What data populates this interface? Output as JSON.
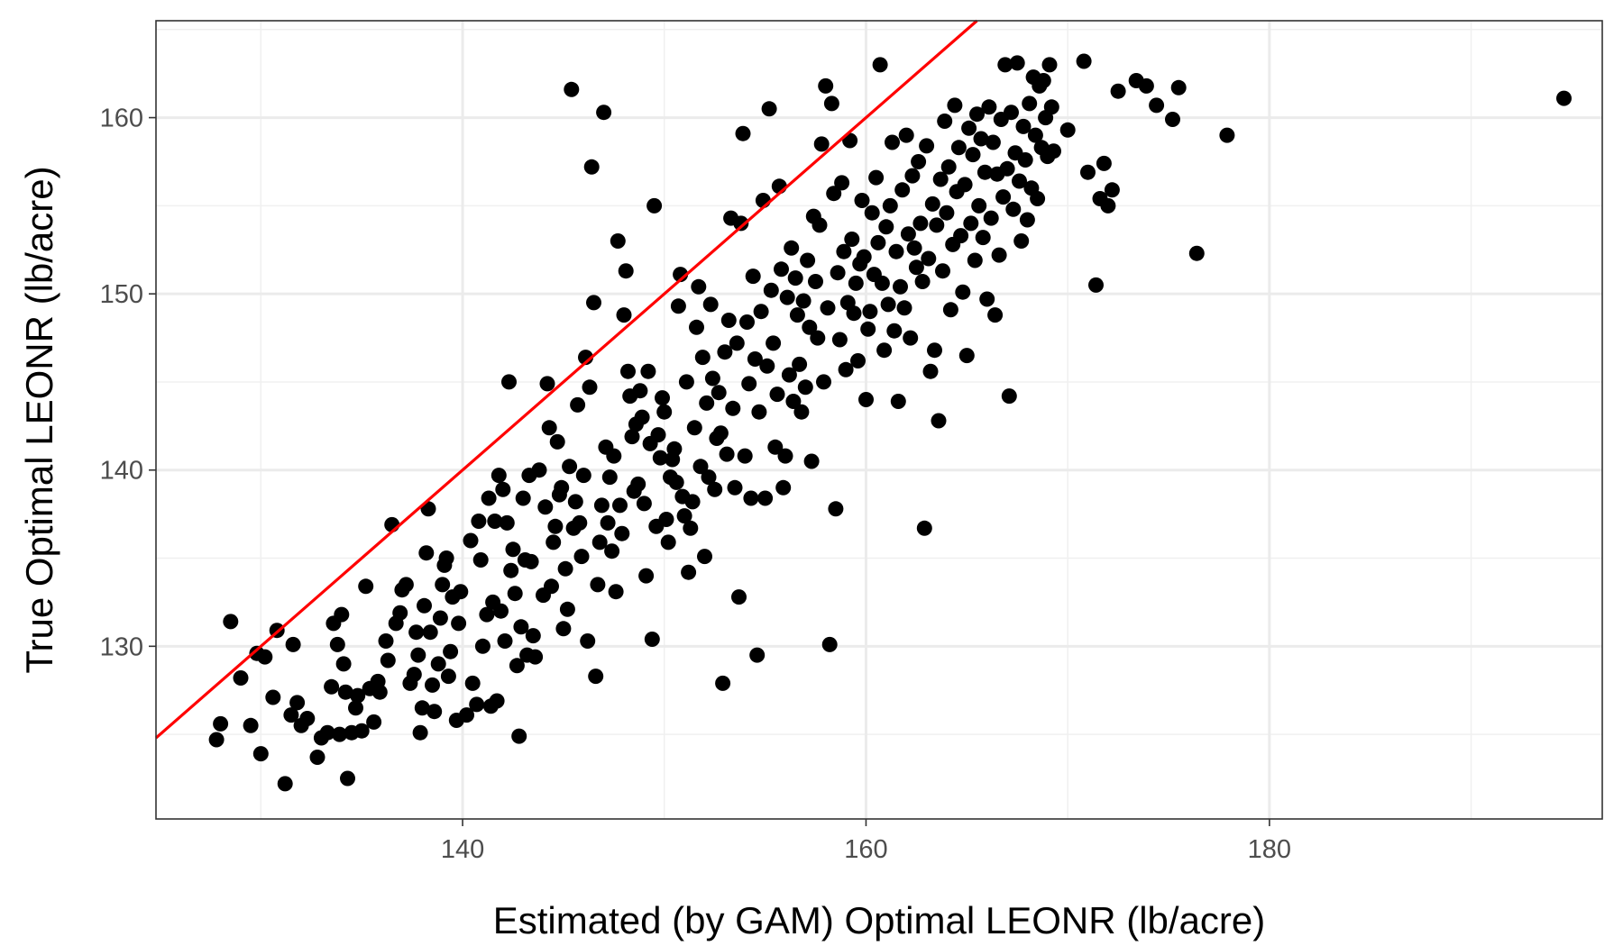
{
  "chart_data": {
    "type": "scatter",
    "xlabel": "Estimated (by GAM) Optimal LEONR (lb/acre)",
    "ylabel": "True Optimal LEONR (lb/acre)",
    "xlim": [
      124.8,
      196.5
    ],
    "ylim": [
      120.2,
      165.5
    ],
    "xticks": [
      140,
      160,
      180
    ],
    "yticks": [
      130,
      140,
      150,
      160
    ],
    "grid": true,
    "legend": "none",
    "point_color": "#000000",
    "reference_line": {
      "type": "identity",
      "slope": 1,
      "intercept": 0,
      "color": "#ff0000"
    },
    "points": [
      [
        127.8,
        124.7
      ],
      [
        128.0,
        125.6
      ],
      [
        128.5,
        131.4
      ],
      [
        129.0,
        128.2
      ],
      [
        129.5,
        125.5
      ],
      [
        129.8,
        129.6
      ],
      [
        130.0,
        123.9
      ],
      [
        130.2,
        129.4
      ],
      [
        130.6,
        127.1
      ],
      [
        130.8,
        130.9
      ],
      [
        131.2,
        122.2
      ],
      [
        131.5,
        126.1
      ],
      [
        131.8,
        126.8
      ],
      [
        131.6,
        130.1
      ],
      [
        132.0,
        125.5
      ],
      [
        132.3,
        125.9
      ],
      [
        132.8,
        123.7
      ],
      [
        133.0,
        124.8
      ],
      [
        133.3,
        125.1
      ],
      [
        133.5,
        127.7
      ],
      [
        133.6,
        131.3
      ],
      [
        133.8,
        130.1
      ],
      [
        133.9,
        125.0
      ],
      [
        134.0,
        131.8
      ],
      [
        134.1,
        129.0
      ],
      [
        134.2,
        127.4
      ],
      [
        134.3,
        122.5
      ],
      [
        134.5,
        125.1
      ],
      [
        134.7,
        126.5
      ],
      [
        134.8,
        127.2
      ],
      [
        135.0,
        125.2
      ],
      [
        135.2,
        133.4
      ],
      [
        135.4,
        127.6
      ],
      [
        135.6,
        125.7
      ],
      [
        135.8,
        128.0
      ],
      [
        135.9,
        127.4
      ],
      [
        136.2,
        130.3
      ],
      [
        136.3,
        129.2
      ],
      [
        136.5,
        136.9
      ],
      [
        136.7,
        131.3
      ],
      [
        136.9,
        131.9
      ],
      [
        137.0,
        133.2
      ],
      [
        137.2,
        133.5
      ],
      [
        137.4,
        127.9
      ],
      [
        137.6,
        128.4
      ],
      [
        137.7,
        130.8
      ],
      [
        137.8,
        129.5
      ],
      [
        137.9,
        125.1
      ],
      [
        138.0,
        126.5
      ],
      [
        138.1,
        132.3
      ],
      [
        138.2,
        135.3
      ],
      [
        138.3,
        137.8
      ],
      [
        138.4,
        130.8
      ],
      [
        138.5,
        127.8
      ],
      [
        138.6,
        126.3
      ],
      [
        138.8,
        129.0
      ],
      [
        138.9,
        131.6
      ],
      [
        139.0,
        133.5
      ],
      [
        139.1,
        134.6
      ],
      [
        139.2,
        135.0
      ],
      [
        139.3,
        128.3
      ],
      [
        139.4,
        129.7
      ],
      [
        139.5,
        132.8
      ],
      [
        139.7,
        125.8
      ],
      [
        139.8,
        131.3
      ],
      [
        139.9,
        133.1
      ],
      [
        140.2,
        126.1
      ],
      [
        140.4,
        136.0
      ],
      [
        140.5,
        127.9
      ],
      [
        140.7,
        126.7
      ],
      [
        140.8,
        137.1
      ],
      [
        140.9,
        134.9
      ],
      [
        141.0,
        130.0
      ],
      [
        141.2,
        131.8
      ],
      [
        141.3,
        138.4
      ],
      [
        141.4,
        126.6
      ],
      [
        141.5,
        132.5
      ],
      [
        141.6,
        137.1
      ],
      [
        141.7,
        126.9
      ],
      [
        141.8,
        139.7
      ],
      [
        141.9,
        132.0
      ],
      [
        142.0,
        138.9
      ],
      [
        142.1,
        130.3
      ],
      [
        142.2,
        137.0
      ],
      [
        142.3,
        145.0
      ],
      [
        142.4,
        134.3
      ],
      [
        142.5,
        135.5
      ],
      [
        142.6,
        133.0
      ],
      [
        142.7,
        128.9
      ],
      [
        142.8,
        124.9
      ],
      [
        142.9,
        131.1
      ],
      [
        143.0,
        138.4
      ],
      [
        143.1,
        134.9
      ],
      [
        143.2,
        129.5
      ],
      [
        143.3,
        139.7
      ],
      [
        143.4,
        134.8
      ],
      [
        143.5,
        130.6
      ],
      [
        143.6,
        129.4
      ],
      [
        143.8,
        140.0
      ],
      [
        144.0,
        132.9
      ],
      [
        144.1,
        137.9
      ],
      [
        144.2,
        144.9
      ],
      [
        144.3,
        142.4
      ],
      [
        144.4,
        133.4
      ],
      [
        144.5,
        135.9
      ],
      [
        144.6,
        136.8
      ],
      [
        144.7,
        141.6
      ],
      [
        144.8,
        138.6
      ],
      [
        144.9,
        139.0
      ],
      [
        145.0,
        131.0
      ],
      [
        145.1,
        134.4
      ],
      [
        145.2,
        132.1
      ],
      [
        145.3,
        140.2
      ],
      [
        145.4,
        161.6
      ],
      [
        145.5,
        136.7
      ],
      [
        145.6,
        138.2
      ],
      [
        145.7,
        143.7
      ],
      [
        145.8,
        137.0
      ],
      [
        145.9,
        135.1
      ],
      [
        146.0,
        139.7
      ],
      [
        146.1,
        146.4
      ],
      [
        146.2,
        130.3
      ],
      [
        146.3,
        144.7
      ],
      [
        146.4,
        157.2
      ],
      [
        146.5,
        149.5
      ],
      [
        146.6,
        128.3
      ],
      [
        146.7,
        133.5
      ],
      [
        146.8,
        135.9
      ],
      [
        146.9,
        138.0
      ],
      [
        147.0,
        160.3
      ],
      [
        147.1,
        141.3
      ],
      [
        147.2,
        137.0
      ],
      [
        147.3,
        139.6
      ],
      [
        147.4,
        135.4
      ],
      [
        147.5,
        140.8
      ],
      [
        147.6,
        133.1
      ],
      [
        147.7,
        153.0
      ],
      [
        147.8,
        138.0
      ],
      [
        147.9,
        136.4
      ],
      [
        148.0,
        148.8
      ],
      [
        148.1,
        151.3
      ],
      [
        148.2,
        145.6
      ],
      [
        148.3,
        144.2
      ],
      [
        148.4,
        141.9
      ],
      [
        148.5,
        138.8
      ],
      [
        148.6,
        142.6
      ],
      [
        148.7,
        139.2
      ],
      [
        148.8,
        144.5
      ],
      [
        148.9,
        143.0
      ],
      [
        149.0,
        138.1
      ],
      [
        149.1,
        134.0
      ],
      [
        149.2,
        145.6
      ],
      [
        149.3,
        141.5
      ],
      [
        149.4,
        130.4
      ],
      [
        149.5,
        155.0
      ],
      [
        149.6,
        136.8
      ],
      [
        149.7,
        142.0
      ],
      [
        149.8,
        140.7
      ],
      [
        149.9,
        144.1
      ],
      [
        150.0,
        143.3
      ],
      [
        150.1,
        137.2
      ],
      [
        150.2,
        135.9
      ],
      [
        150.3,
        139.6
      ],
      [
        150.4,
        140.6
      ],
      [
        150.5,
        141.2
      ],
      [
        150.6,
        139.3
      ],
      [
        150.7,
        149.3
      ],
      [
        150.8,
        151.1
      ],
      [
        150.9,
        138.5
      ],
      [
        151.0,
        137.4
      ],
      [
        151.1,
        145.0
      ],
      [
        151.2,
        134.2
      ],
      [
        151.3,
        136.7
      ],
      [
        151.4,
        138.2
      ],
      [
        151.5,
        142.4
      ],
      [
        151.6,
        148.1
      ],
      [
        151.7,
        150.4
      ],
      [
        151.8,
        140.2
      ],
      [
        151.9,
        146.4
      ],
      [
        152.0,
        135.1
      ],
      [
        152.1,
        143.8
      ],
      [
        152.2,
        139.6
      ],
      [
        152.3,
        149.4
      ],
      [
        152.4,
        145.2
      ],
      [
        152.5,
        138.9
      ],
      [
        152.6,
        141.8
      ],
      [
        152.7,
        144.4
      ],
      [
        152.8,
        142.1
      ],
      [
        152.9,
        127.9
      ],
      [
        153.0,
        146.7
      ],
      [
        153.1,
        140.9
      ],
      [
        153.2,
        148.5
      ],
      [
        153.3,
        154.3
      ],
      [
        153.4,
        143.5
      ],
      [
        153.5,
        139.0
      ],
      [
        153.6,
        147.2
      ],
      [
        153.7,
        132.8
      ],
      [
        153.8,
        154.0
      ],
      [
        153.9,
        159.1
      ],
      [
        154.0,
        140.8
      ],
      [
        154.1,
        148.4
      ],
      [
        154.2,
        144.9
      ],
      [
        154.3,
        138.4
      ],
      [
        154.4,
        151.0
      ],
      [
        154.5,
        146.3
      ],
      [
        154.6,
        129.5
      ],
      [
        154.7,
        143.3
      ],
      [
        154.8,
        149.0
      ],
      [
        154.9,
        155.3
      ],
      [
        155.0,
        138.4
      ],
      [
        155.1,
        145.9
      ],
      [
        155.2,
        160.5
      ],
      [
        155.3,
        150.2
      ],
      [
        155.4,
        147.2
      ],
      [
        155.5,
        141.3
      ],
      [
        155.6,
        144.3
      ],
      [
        155.7,
        156.1
      ],
      [
        155.8,
        151.4
      ],
      [
        155.9,
        139.0
      ],
      [
        156.0,
        140.8
      ],
      [
        156.1,
        149.8
      ],
      [
        156.2,
        145.4
      ],
      [
        156.3,
        152.6
      ],
      [
        156.4,
        143.9
      ],
      [
        156.5,
        150.9
      ],
      [
        156.6,
        148.8
      ],
      [
        156.7,
        146.0
      ],
      [
        156.8,
        143.3
      ],
      [
        156.9,
        149.6
      ],
      [
        157.0,
        144.7
      ],
      [
        157.1,
        151.9
      ],
      [
        157.2,
        148.1
      ],
      [
        157.3,
        140.5
      ],
      [
        157.4,
        154.4
      ],
      [
        157.5,
        150.7
      ],
      [
        157.6,
        147.5
      ],
      [
        157.7,
        153.9
      ],
      [
        157.8,
        158.5
      ],
      [
        157.9,
        145.0
      ],
      [
        158.0,
        161.8
      ],
      [
        158.1,
        149.2
      ],
      [
        158.2,
        130.1
      ],
      [
        158.3,
        160.8
      ],
      [
        158.4,
        155.7
      ],
      [
        158.5,
        137.8
      ],
      [
        158.6,
        151.2
      ],
      [
        158.7,
        147.4
      ],
      [
        158.8,
        156.3
      ],
      [
        158.9,
        152.4
      ],
      [
        159.0,
        145.7
      ],
      [
        159.1,
        149.5
      ],
      [
        159.2,
        158.7
      ],
      [
        159.3,
        153.1
      ],
      [
        159.4,
        148.9
      ],
      [
        159.5,
        150.6
      ],
      [
        159.6,
        146.2
      ],
      [
        159.7,
        151.7
      ],
      [
        159.8,
        155.3
      ],
      [
        159.9,
        152.1
      ],
      [
        160.0,
        144.0
      ],
      [
        160.1,
        148.0
      ],
      [
        160.2,
        149.0
      ],
      [
        160.3,
        154.6
      ],
      [
        160.4,
        151.1
      ],
      [
        160.5,
        156.6
      ],
      [
        160.6,
        152.9
      ],
      [
        160.7,
        163.0
      ],
      [
        160.8,
        150.6
      ],
      [
        160.9,
        146.8
      ],
      [
        161.0,
        153.8
      ],
      [
        161.1,
        149.4
      ],
      [
        161.2,
        155.0
      ],
      [
        161.3,
        158.6
      ],
      [
        161.4,
        147.9
      ],
      [
        161.5,
        152.4
      ],
      [
        161.6,
        143.9
      ],
      [
        161.7,
        150.4
      ],
      [
        161.8,
        155.9
      ],
      [
        161.9,
        149.2
      ],
      [
        162.0,
        159.0
      ],
      [
        162.1,
        153.4
      ],
      [
        162.2,
        147.5
      ],
      [
        162.3,
        156.7
      ],
      [
        162.4,
        152.6
      ],
      [
        162.5,
        151.5
      ],
      [
        162.6,
        157.5
      ],
      [
        162.7,
        154.0
      ],
      [
        162.8,
        150.7
      ],
      [
        162.9,
        136.7
      ],
      [
        163.0,
        158.4
      ],
      [
        163.1,
        152.0
      ],
      [
        163.2,
        145.6
      ],
      [
        163.3,
        155.1
      ],
      [
        163.4,
        146.8
      ],
      [
        163.5,
        153.9
      ],
      [
        163.6,
        142.8
      ],
      [
        163.7,
        156.5
      ],
      [
        163.8,
        151.3
      ],
      [
        163.9,
        159.8
      ],
      [
        164.0,
        154.6
      ],
      [
        164.1,
        157.2
      ],
      [
        164.2,
        149.1
      ],
      [
        164.3,
        152.8
      ],
      [
        164.4,
        160.7
      ],
      [
        164.5,
        155.8
      ],
      [
        164.6,
        158.3
      ],
      [
        164.7,
        153.3
      ],
      [
        164.8,
        150.1
      ],
      [
        164.9,
        156.2
      ],
      [
        165.0,
        146.5
      ],
      [
        165.1,
        159.4
      ],
      [
        165.2,
        154.0
      ],
      [
        165.3,
        157.9
      ],
      [
        165.4,
        151.9
      ],
      [
        165.5,
        160.2
      ],
      [
        165.6,
        155.0
      ],
      [
        165.7,
        158.8
      ],
      [
        165.8,
        153.2
      ],
      [
        165.9,
        156.9
      ],
      [
        166.0,
        149.7
      ],
      [
        166.1,
        160.6
      ],
      [
        166.2,
        154.3
      ],
      [
        166.3,
        158.6
      ],
      [
        166.4,
        148.8
      ],
      [
        166.5,
        156.8
      ],
      [
        166.6,
        152.2
      ],
      [
        166.7,
        159.9
      ],
      [
        166.8,
        155.5
      ],
      [
        166.9,
        163.0
      ],
      [
        167.0,
        157.1
      ],
      [
        167.1,
        144.2
      ],
      [
        167.2,
        160.3
      ],
      [
        167.3,
        154.8
      ],
      [
        167.4,
        158.0
      ],
      [
        167.5,
        163.1
      ],
      [
        167.6,
        156.4
      ],
      [
        167.7,
        153.0
      ],
      [
        167.8,
        159.5
      ],
      [
        167.9,
        157.6
      ],
      [
        168.0,
        154.2
      ],
      [
        168.1,
        160.8
      ],
      [
        168.2,
        156.0
      ],
      [
        168.3,
        162.3
      ],
      [
        168.4,
        159.0
      ],
      [
        168.5,
        155.4
      ],
      [
        168.6,
        161.8
      ],
      [
        168.7,
        158.3
      ],
      [
        168.8,
        162.1
      ],
      [
        168.9,
        160.0
      ],
      [
        169.0,
        157.8
      ],
      [
        169.1,
        163.0
      ],
      [
        169.2,
        160.6
      ],
      [
        169.3,
        158.1
      ],
      [
        170.0,
        159.3
      ],
      [
        170.8,
        163.2
      ],
      [
        171.0,
        156.9
      ],
      [
        171.4,
        150.5
      ],
      [
        171.6,
        155.4
      ],
      [
        171.8,
        157.4
      ],
      [
        172.0,
        155.0
      ],
      [
        172.2,
        155.9
      ],
      [
        172.5,
        161.5
      ],
      [
        173.4,
        162.1
      ],
      [
        173.9,
        161.8
      ],
      [
        174.4,
        160.7
      ],
      [
        175.2,
        159.9
      ],
      [
        175.5,
        161.7
      ],
      [
        176.4,
        152.3
      ],
      [
        177.9,
        159.0
      ],
      [
        194.6,
        161.1
      ]
    ]
  }
}
